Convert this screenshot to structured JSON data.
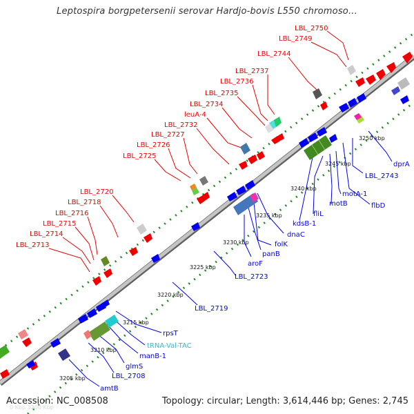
{
  "title": "Leptospira borgpetersenii serovar Hardjo-bovis L550 chromoso...",
  "footer": {
    "accession": "Accession: NC_008508",
    "topology": "Topology: circular; Length: 3,614,446 bp; Genes: 2,745",
    "faint": "0 Kbp  3200 Kbp"
  },
  "colors": {
    "backbone": "#a3a3a3",
    "forward_strand": "#0000ee",
    "reverse_strand": "#ee0000",
    "trna": "#33bbcc",
    "tick_dots": "#228822"
  },
  "scale_labels": [
    "3205 kbp",
    "3210 kbp",
    "3215 kbp",
    "3220 kbp",
    "3225 kbp",
    "3230 kbp",
    "3235 kbp",
    "3240 kbp",
    "3245 kbp",
    "3250 kbp"
  ],
  "upper_labels": [
    "LBL_2750",
    "LBL_2749",
    "LBL_2744",
    "LBL_2737",
    "LBL_2736",
    "LBL_2735",
    "LBL_2734",
    "leuA-4",
    "LBL_2732",
    "LBL_2727",
    "LBL_2726",
    "LBL_2725",
    "LBL_2720",
    "LBL_2718",
    "LBL_2716",
    "LBL_2715",
    "LBL_2714",
    "LBL_2713"
  ],
  "lower_labels": [
    "dprA",
    "LBL_2743",
    "flbD",
    "motA-1",
    "motB",
    "fliL",
    "kdsB-1",
    "dnaC",
    "folK",
    "panB",
    "aroF",
    "LBL_2723",
    "LBL_2719",
    "rpsT",
    "tRNA-Val-TAC",
    "manB-1",
    "glmS",
    "LBL_2708",
    "amtB"
  ]
}
